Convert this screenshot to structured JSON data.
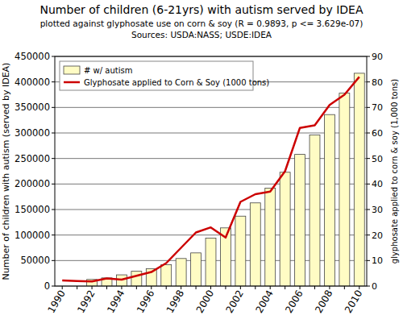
{
  "chart_data": {
    "type": "bar",
    "title": "Number of children (6-21yrs) with autism served by IDEA",
    "subtitle": "plotted against glyphosate use on corn & soy (R = 0.9893, p <= 3.629e-07)",
    "source": "Sources: USDA:NASS; USDE:IDEA",
    "y_label": "Number of children with autism (served by IDEA)",
    "y2_label": "glyphosate applied to corn & soy (1,000 tons)",
    "categories": [
      "1990",
      null,
      "1992",
      null,
      "1994",
      null,
      "1996",
      null,
      "1998",
      null,
      "2000",
      null,
      "2002",
      null,
      "2004",
      null,
      "2006",
      null,
      "2008",
      null,
      "2010"
    ],
    "series": [
      {
        "name": "# w/ autism",
        "type": "bar",
        "color": "#fffcc4",
        "values": [
          null,
          null,
          13000,
          16000,
          22000,
          29000,
          34000,
          42000,
          54000,
          65000,
          94000,
          114000,
          137000,
          163000,
          192000,
          223000,
          258000,
          296000,
          336000,
          378000,
          417000
        ]
      },
      {
        "name": "Glyphosate applied to Corn & Soy (1000 tons)",
        "type": "line",
        "color": "#cc0000",
        "axis": "y2",
        "values": [
          2.2,
          2,
          1.8,
          3,
          2.5,
          4,
          5.5,
          9,
          15,
          21,
          23,
          19,
          33,
          36,
          37,
          45,
          62,
          63,
          71,
          75,
          82
        ]
      }
    ],
    "ylim": [
      0,
      450000
    ],
    "yticks": [
      0,
      50000,
      100000,
      150000,
      200000,
      250000,
      300000,
      350000,
      400000,
      450000
    ],
    "y2lim": [
      0,
      90
    ],
    "y2ticks": [
      0,
      10,
      20,
      30,
      40,
      50,
      60,
      70,
      80,
      90
    ],
    "grid": true,
    "legend": "upper left"
  }
}
